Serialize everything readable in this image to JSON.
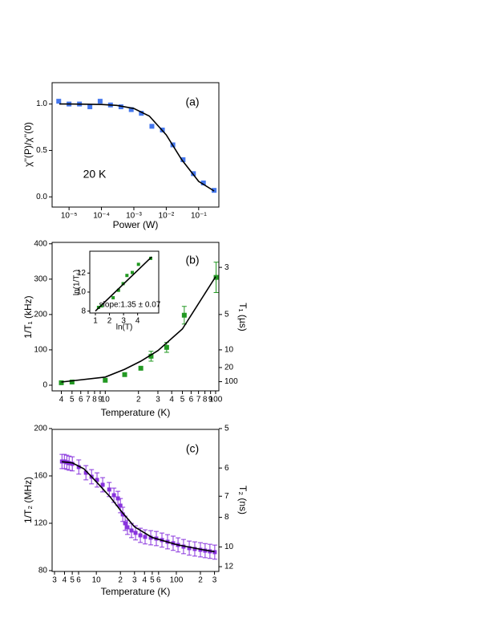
{
  "chart_data": [
    {
      "type": "scatter",
      "xscale": "log",
      "xlim": [
        3e-06,
        0.42
      ],
      "ylim": [
        -0.11,
        1.23
      ],
      "xticks": [
        {
          "value": 1e-05,
          "label": "10⁻⁵"
        },
        {
          "value": 0.0001,
          "label": "10⁻⁴"
        },
        {
          "value": 0.001,
          "label": "10⁻³"
        },
        {
          "value": 0.01,
          "label": "10⁻²"
        },
        {
          "value": 0.1,
          "label": "10⁻¹"
        }
      ],
      "yticks": [
        {
          "value": 0,
          "label": "0.0"
        },
        {
          "value": 0.5,
          "label": "0.5"
        },
        {
          "value": 1,
          "label": "1.0"
        }
      ],
      "xlabel": "Power (W)",
      "ylabel": "χ''(P)/χ''(0)",
      "annotations": [
        "(a)",
        "20 K"
      ],
      "series": [
        {
          "kind": "points",
          "color": "#4477ee",
          "x": [
            4.8e-06,
            1e-05,
            2.1e-05,
            4.4e-05,
            9.1e-05,
            0.00019,
            0.0004,
            0.00083,
            0.0017,
            0.0036,
            0.0076,
            0.016,
            0.033,
            0.069,
            0.14,
            0.3
          ],
          "values": [
            1.03,
            1.0,
            1.0,
            0.97,
            1.03,
            0.99,
            0.97,
            0.94,
            0.9,
            0.76,
            0.72,
            0.56,
            0.4,
            0.25,
            0.15,
            0.07
          ]
        },
        {
          "kind": "line",
          "color": "#000000",
          "x": [
            5e-06,
            1e-05,
            3e-05,
            0.0001,
            0.0003,
            0.001,
            0.003,
            0.01,
            0.03,
            0.1,
            0.3
          ],
          "values": [
            1.0,
            1.0,
            0.998,
            0.995,
            0.985,
            0.952,
            0.87,
            0.667,
            0.4,
            0.167,
            0.063
          ]
        }
      ]
    },
    {
      "type": "scatter",
      "xscale": "log",
      "xlim": [
        3.3,
        107
      ],
      "ylim": [
        -16,
        404
      ],
      "xticks": [
        4,
        5,
        6,
        7,
        8,
        9,
        10,
        {
          "value": 20,
          "label": "2"
        },
        {
          "value": 30,
          "label": "3"
        },
        {
          "value": 40,
          "label": "4"
        },
        {
          "value": 50,
          "label": "5"
        },
        {
          "value": 60,
          "label": "6"
        },
        {
          "value": 70,
          "label": "7"
        },
        {
          "value": 80,
          "label": "8"
        },
        {
          "value": 90,
          "label": "9"
        },
        100
      ],
      "yticks": [
        0,
        100,
        200,
        300,
        400
      ],
      "y2scale": "reciprocal",
      "y2factor": 1000,
      "y2ticks": [
        3,
        5,
        10,
        20,
        100
      ],
      "xlabel": "Temperature (K)",
      "ylabel": "1/T₁ (kHz)",
      "y2label": "T₁ (µs)",
      "annotations": [
        "(b)"
      ],
      "series": [
        {
          "kind": "points",
          "color": "#229922",
          "x": [
            4,
            5,
            10,
            15,
            21,
            26,
            36,
            52,
            101
          ],
          "values": [
            7,
            9,
            14,
            30,
            48,
            82,
            107,
            198,
            305
          ],
          "errors": [
            null,
            null,
            null,
            null,
            null,
            14,
            14,
            25,
            43
          ]
        },
        {
          "kind": "line",
          "color": "#000000",
          "x": [
            4,
            10,
            15,
            21,
            30,
            50,
            100
          ],
          "values": [
            9,
            23,
            45,
            68,
            98,
            159,
            307
          ]
        }
      ]
    },
    {
      "type": "scatter",
      "xlim": [
        0.6,
        5.5
      ],
      "ylim": [
        7.8,
        14.3
      ],
      "xticks": [
        1,
        2,
        3,
        4
      ],
      "yticks": [
        8,
        10,
        12
      ],
      "xlabel": "ln(T)",
      "ylabel": "ln(1/T₁)",
      "annotations": [
        "slope:1.35 ± 0.07"
      ],
      "series": [
        {
          "kind": "points",
          "color": "#229922",
          "x": [
            1.22,
            1.44,
            2.26,
            2.64,
            2.97,
            3.24,
            3.62,
            4.06,
            4.93
          ],
          "values": [
            8.39,
            8.55,
            9.41,
            10.19,
            10.89,
            11.75,
            12.06,
            12.92,
            13.55
          ]
        },
        {
          "kind": "line",
          "color": "#000000",
          "x": [
            1,
            5
          ],
          "values": [
            8.0,
            13.7
          ]
        }
      ]
    },
    {
      "type": "scatter",
      "xscale": "log",
      "xlim": [
        2.8,
        340
      ],
      "ylim": [
        79.3,
        199.3
      ],
      "xticks": [
        3,
        4,
        5,
        6,
        10,
        {
          "value": 20,
          "label": "2"
        },
        {
          "value": 30,
          "label": "3"
        },
        {
          "value": 40,
          "label": "4"
        },
        {
          "value": 50,
          "label": "5"
        },
        {
          "value": 60,
          "label": "6"
        },
        100,
        {
          "value": 200,
          "label": "2"
        },
        {
          "value": 300,
          "label": "3"
        }
      ],
      "yticks": [
        80,
        120,
        160,
        200
      ],
      "y2scale": "reciprocal",
      "y2factor": 1000,
      "y2ticks": [
        5,
        6,
        7,
        8,
        10,
        12
      ],
      "xlabel": "Temperature (K)",
      "ylabel": "1/T₂ (MHz)",
      "y2label": "T₂ (ns)",
      "annotations": [
        "(c)"
      ],
      "series": [
        {
          "kind": "points",
          "color": "#8833dd",
          "x": [
            3.72,
            3.98,
            4.27,
            4.57,
            5.01,
            6.03,
            7.41,
            8.71,
            10.2,
            12.0,
            14.5,
            16.6,
            18.6,
            20.0,
            21.4,
            22.9,
            24.5,
            27.5,
            30.9,
            35.5,
            40.7,
            47.9,
            56.2,
            66.1,
            77.6,
            91.2,
            105,
            123,
            145,
            170,
            200,
            229,
            263,
            302
          ],
          "values": [
            172.2,
            172.2,
            171.5,
            170.8,
            170.2,
            167.5,
            162.7,
            159.3,
            156.6,
            152.5,
            148.5,
            143.7,
            141.0,
            134.9,
            127.5,
            120.0,
            116.6,
            113.9,
            111.9,
            109.8,
            108.5,
            107.8,
            107.1,
            105.8,
            104.4,
            103.1,
            101.7,
            100.3,
            99.0,
            98.3,
            97.6,
            96.9,
            96.3,
            95.6
          ],
          "errors": [
            6,
            6,
            6,
            6,
            6,
            6,
            6,
            6,
            6,
            6,
            6,
            6,
            6,
            6,
            6,
            6,
            6,
            6,
            6,
            6,
            6,
            6,
            6,
            6,
            6,
            6,
            6,
            6,
            6,
            6,
            6,
            6,
            6,
            6
          ]
        },
        {
          "kind": "line",
          "color": "#000000",
          "x": [
            3.7,
            5,
            7,
            10,
            15,
            20,
            30,
            50,
            100,
            200,
            300
          ],
          "values": [
            172,
            171,
            166,
            155,
            142,
            131,
            117,
            108,
            102,
            98,
            96
          ]
        }
      ]
    }
  ]
}
